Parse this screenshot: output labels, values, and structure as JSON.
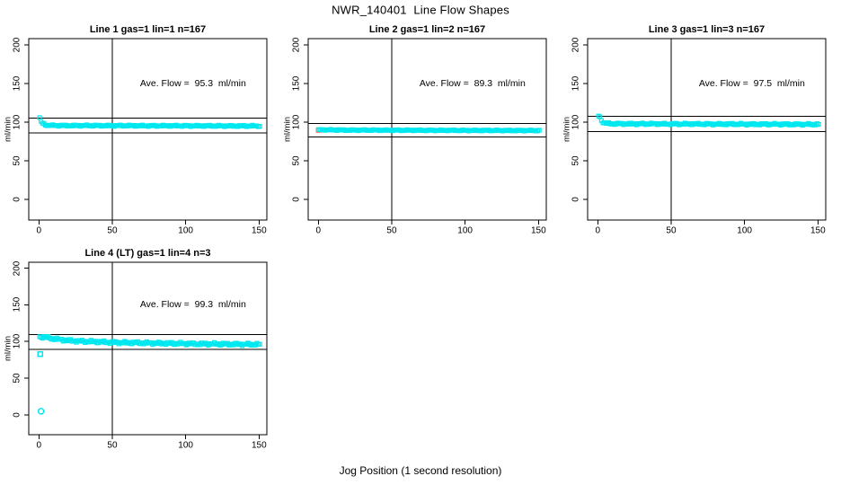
{
  "title": "NWR_140401  Line Flow Shapes",
  "xlabel": "Jog Position (1 second resolution)",
  "colors": {
    "point": "#00e8ef",
    "first_point": "#fa8072",
    "ref_line": "#000000",
    "background": "#ffffff"
  },
  "axes": {
    "x_ticks": [
      0,
      50,
      100,
      150
    ],
    "y_ticks": [
      0,
      50,
      100,
      150,
      200
    ],
    "y_unit": "ml/min",
    "x_range": [
      0,
      150
    ],
    "y_range": [
      0,
      200
    ]
  },
  "chart_data": [
    {
      "type": "scatter",
      "title": "Line 1 gas=1 lin=1 n=167",
      "annotation": "Ave. Flow =  95.3  ml/min",
      "ave_flow": 95.3,
      "n": 167,
      "ref_lines": [
        104.8,
        85.8
      ],
      "vline": 50,
      "marker": "square",
      "jitter": 1.0,
      "x_start": 0.5,
      "x_end": 150.5,
      "profile": [
        [
          0.5,
          105
        ],
        [
          1.5,
          100.5
        ],
        [
          2.5,
          98.4
        ],
        [
          3.5,
          97.1
        ],
        [
          4.5,
          96.3
        ],
        [
          6.5,
          95.7
        ],
        [
          10,
          95.4
        ],
        [
          60,
          95.2
        ],
        [
          150.5,
          94.8
        ]
      ],
      "outliers": []
    },
    {
      "type": "scatter",
      "title": "Line 2 gas=1 lin=2 n=167",
      "annotation": "Ave. Flow =  89.3  ml/min",
      "ave_flow": 89.3,
      "n": 167,
      "ref_lines": [
        98.2,
        80.4
      ],
      "vline": 50,
      "marker": "square",
      "jitter": 0.8,
      "x_start": 0.5,
      "x_end": 150.5,
      "profile": [
        [
          0.5,
          89.9
        ],
        [
          20,
          89.5
        ],
        [
          80,
          89.2
        ],
        [
          150.5,
          88.9
        ]
      ],
      "pre_point": {
        "x": 0.2,
        "y": 89.5
      },
      "outliers": []
    },
    {
      "type": "scatter",
      "title": "Line 3 gas=1 lin=3 n=167",
      "annotation": "Ave. Flow =  97.5  ml/min",
      "ave_flow": 97.5,
      "n": 167,
      "ref_lines": [
        107.3,
        87.8
      ],
      "vline": 50,
      "marker": "square",
      "jitter": 1.3,
      "x_start": 0.5,
      "x_end": 150.5,
      "profile": [
        [
          0.5,
          108
        ],
        [
          1.5,
          106.3
        ],
        [
          2.5,
          102.3
        ],
        [
          3.5,
          100
        ],
        [
          4.5,
          98.8
        ],
        [
          6,
          98.1
        ],
        [
          9,
          97.7
        ],
        [
          80,
          97.3
        ],
        [
          150.5,
          96.9
        ]
      ],
      "outliers": []
    },
    {
      "type": "scatter",
      "title": "Line 4 (LT) gas=1 lin=4 n=3",
      "annotation": "Ave. Flow =  99.3  ml/min",
      "ave_flow": 99.3,
      "n": 3,
      "ref_lines": [
        109.2,
        89.4
      ],
      "vline": 50,
      "marker": "square",
      "jitter": 2.0,
      "x_start": 0.5,
      "x_end": 150.5,
      "profile": [
        [
          0.5,
          106
        ],
        [
          3,
          106.4
        ],
        [
          6,
          105.2
        ],
        [
          10,
          103.8
        ],
        [
          15,
          102.4
        ],
        [
          22,
          101.2
        ],
        [
          30,
          100.3
        ],
        [
          45,
          99.2
        ],
        [
          60,
          98.4
        ],
        [
          80,
          97.7
        ],
        [
          100,
          97.1
        ],
        [
          125,
          96.5
        ],
        [
          150.5,
          96
        ]
      ],
      "outliers": [
        {
          "x": 1,
          "y": 83,
          "shape": "square"
        },
        {
          "x": 1.5,
          "y": 5,
          "shape": "circle"
        }
      ]
    }
  ]
}
